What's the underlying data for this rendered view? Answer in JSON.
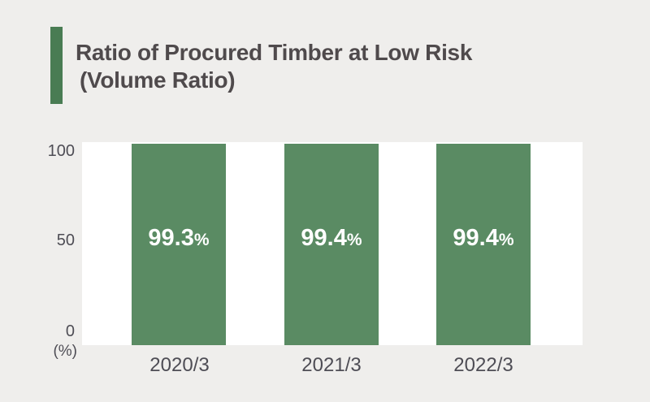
{
  "header": {
    "title_line1": "Ratio of Procured Timber at Low Risk",
    "title_line2": "(Volume Ratio)"
  },
  "chart_data": {
    "type": "bar",
    "title": "Ratio of Procured Timber at Low Risk (Volume Ratio)",
    "categories": [
      "2020/3",
      "2021/3",
      "2022/3"
    ],
    "values": [
      99.3,
      99.4,
      99.4
    ],
    "value_labels": [
      "99.3",
      "99.4",
      "99.4"
    ],
    "value_unit": "%",
    "ylabel": "(%)",
    "ytick_labels": [
      "100",
      "50",
      "0"
    ],
    "ylim": [
      0,
      100
    ],
    "grid": false,
    "legend": false
  },
  "colors": {
    "background": "#efeeec",
    "plot_background": "#ffffff",
    "bar_fill": "#5a8b63",
    "accent_green": "#497c53",
    "title_text": "#4f4a4c",
    "axis_text": "#4e4d55",
    "value_text": "#ffffff"
  }
}
